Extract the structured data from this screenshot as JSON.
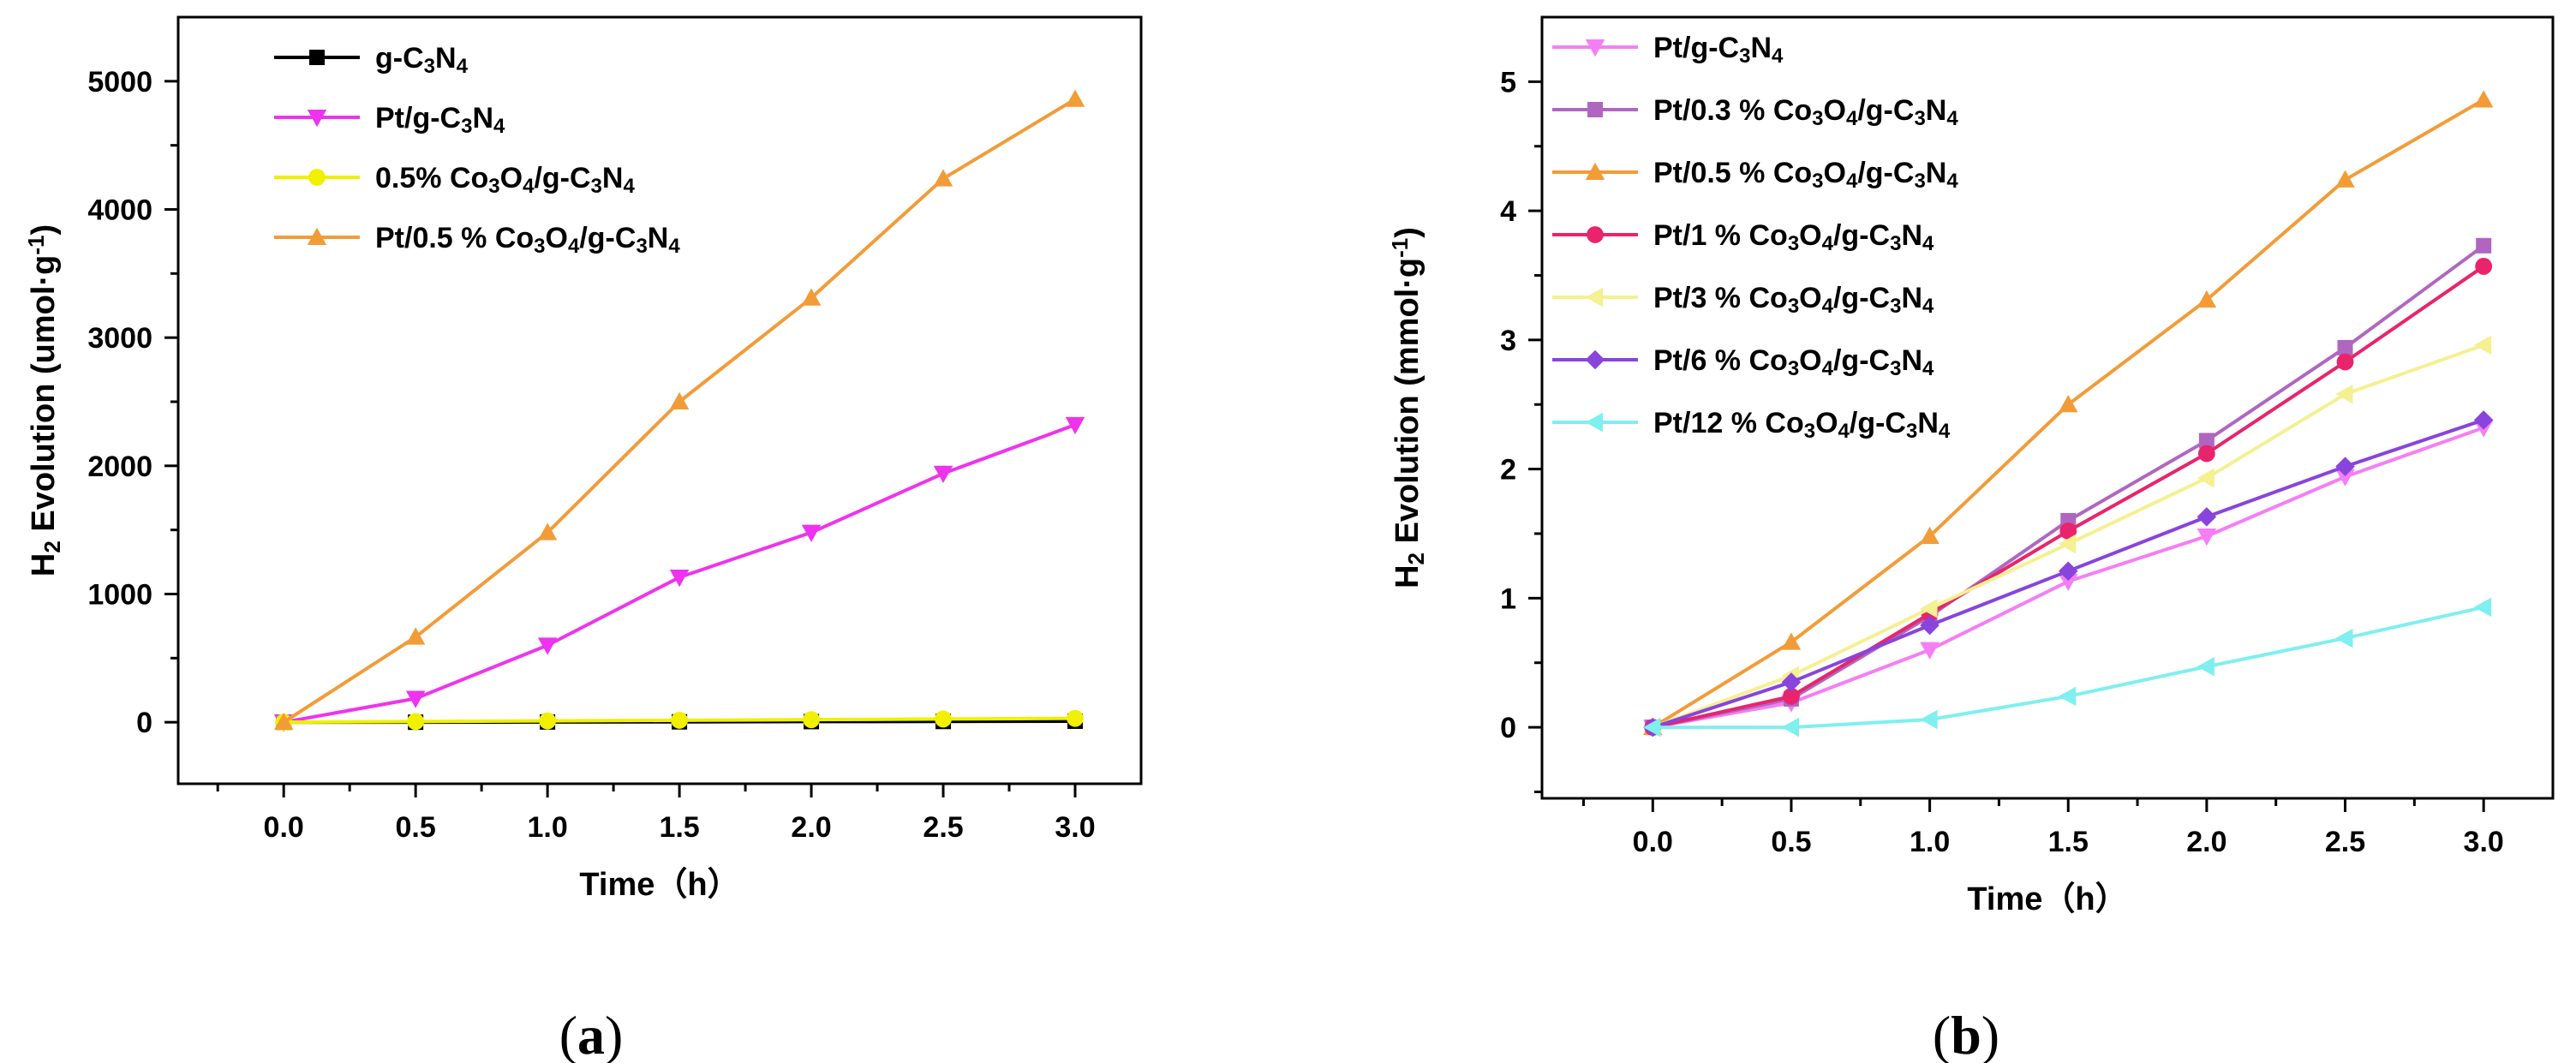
{
  "figure": {
    "panel_labels": [
      {
        "open": "(",
        "letter": "a",
        "close": ")"
      },
      {
        "open": "(",
        "letter": "b",
        "close": ")"
      }
    ]
  },
  "chart_data": [
    {
      "type": "line",
      "panel": "a",
      "title": "",
      "xlabel": "Time（h）",
      "ylabel": "H2 Evolution (umol·g-1)",
      "ylabel_parts": {
        "h": "H",
        "sub": "2",
        "mid": " Evolution (umol",
        "dot": "·",
        "g": "g",
        "sup": "-1",
        "end": ")"
      },
      "xlim": [
        -0.4,
        3.25
      ],
      "ylim": [
        -480,
        5500
      ],
      "xticks": [
        0.0,
        0.5,
        1.0,
        1.5,
        2.0,
        2.5,
        3.0
      ],
      "xtick_labels": [
        "0.0",
        "0.5",
        "1.0",
        "1.5",
        "2.0",
        "2.5",
        "3.0"
      ],
      "yticks": [
        0,
        1000,
        2000,
        3000,
        4000,
        5000
      ],
      "ytick_labels": [
        "0",
        "1000",
        "2000",
        "3000",
        "4000",
        "5000"
      ],
      "legend_position": "top-left",
      "x": [
        0.0,
        0.5,
        1.0,
        1.5,
        2.0,
        2.5,
        3.0
      ],
      "series": [
        {
          "name": "g-C3N4",
          "label_parts": [
            "g-C",
            "3",
            "N",
            "4",
            ""
          ],
          "color": "#000000",
          "marker": "square",
          "values": [
            0,
            0,
            2,
            3,
            5,
            6,
            8
          ]
        },
        {
          "name": "Pt/g-C3N4",
          "label_parts": [
            "Pt/g-C",
            "3",
            "N",
            "4",
            ""
          ],
          "color": "#ee33ee",
          "marker": "triangle-down",
          "values": [
            0,
            185,
            600,
            1130,
            1480,
            1940,
            2320
          ]
        },
        {
          "name": "0.5% Co3O4/g-C3N4",
          "label_parts": [
            "0.5% Co",
            "3",
            "O",
            "4",
            "/g-C",
            "3",
            "N",
            "4",
            ""
          ],
          "color": "#f0f000",
          "marker": "circle",
          "values": [
            0,
            5,
            10,
            15,
            20,
            25,
            30
          ]
        },
        {
          "name": "Pt/0.5 % Co3O4/g-C3N4",
          "label_parts": [
            "Pt/0.5 % Co",
            "3",
            "O",
            "4",
            "/g-C",
            "3",
            "N",
            "4",
            ""
          ],
          "color": "#f29c38",
          "marker": "triangle-up",
          "values": [
            0,
            665,
            1480,
            2500,
            3310,
            4240,
            4860
          ]
        }
      ]
    },
    {
      "type": "line",
      "panel": "b",
      "title": "",
      "xlabel": "Time（h）",
      "ylabel": "H2 Evolution (mmol·g-1)",
      "ylabel_parts": {
        "h": "H",
        "sub": "2",
        "mid": " Evolution (mmol",
        "dot": "·",
        "g": "g",
        "sup": "-1",
        "end": ")"
      },
      "xlim": [
        -0.4,
        3.25
      ],
      "ylim": [
        -0.55,
        5.5
      ],
      "xticks": [
        0.0,
        0.5,
        1.0,
        1.5,
        2.0,
        2.5,
        3.0
      ],
      "xtick_labels": [
        "0.0",
        "0.5",
        "1.0",
        "1.5",
        "2.0",
        "2.5",
        "3.0"
      ],
      "yticks": [
        0,
        1,
        2,
        3,
        4,
        5
      ],
      "ytick_labels": [
        "0",
        "1",
        "2",
        "3",
        "4",
        "5"
      ],
      "legend_position": "top-left",
      "x": [
        0.0,
        0.5,
        1.0,
        1.5,
        2.0,
        2.5,
        3.0
      ],
      "series": [
        {
          "name": "Pt/g-C3N4",
          "label_parts": [
            "Pt/g-C",
            "3",
            "N",
            "4",
            ""
          ],
          "color": "#f57ef5",
          "marker": "triangle-down",
          "values": [
            0,
            0.19,
            0.6,
            1.13,
            1.48,
            1.94,
            2.32
          ]
        },
        {
          "name": "Pt/0.3 % Co3O4/g-C3N4",
          "label_parts": [
            "Pt/0.3 % Co",
            "3",
            "O",
            "4",
            "/g-C",
            "3",
            "N",
            "4",
            ""
          ],
          "color": "#b066c0",
          "marker": "square",
          "values": [
            0,
            0.22,
            0.86,
            1.6,
            2.22,
            2.94,
            3.73
          ]
        },
        {
          "name": "Pt/0.5 % Co3O4/g-C3N4",
          "label_parts": [
            "Pt/0.5 % Co",
            "3",
            "O",
            "4",
            "/g-C",
            "3",
            "N",
            "4",
            ""
          ],
          "color": "#f29c38",
          "marker": "triangle-up",
          "values": [
            0,
            0.66,
            1.48,
            2.5,
            3.31,
            4.24,
            4.86
          ]
        },
        {
          "name": "Pt/1 % Co3O4/g-C3N4",
          "label_parts": [
            "Pt/1 % Co",
            "3",
            "O",
            "4",
            "/g-C",
            "3",
            "N",
            "4",
            ""
          ],
          "color": "#e8246c",
          "marker": "circle",
          "values": [
            0,
            0.24,
            0.88,
            1.52,
            2.12,
            2.83,
            3.57
          ]
        },
        {
          "name": "Pt/3 % Co3O4/g-C3N4",
          "label_parts": [
            "Pt/3 % Co",
            "3",
            "O",
            "4",
            "/g-C",
            "3",
            "N",
            "4",
            ""
          ],
          "color": "#f5f090",
          "marker": "triangle-left",
          "values": [
            0,
            0.4,
            0.92,
            1.42,
            1.93,
            2.58,
            2.96
          ]
        },
        {
          "name": "Pt/6 % Co3O4/g-C3N4",
          "label_parts": [
            "Pt/6 % Co",
            "3",
            "O",
            "4",
            "/g-C",
            "3",
            "N",
            "4",
            ""
          ],
          "color": "#8844dd",
          "marker": "diamond",
          "values": [
            0,
            0.35,
            0.79,
            1.21,
            1.63,
            2.02,
            2.38
          ]
        },
        {
          "name": "Pt/12 % Co3O4/g-C3N4",
          "label_parts": [
            "Pt/12 % Co",
            "3",
            "O",
            "4",
            "/g-C",
            "3",
            "N",
            "4",
            ""
          ],
          "color": "#7fefef",
          "marker": "triangle-left",
          "values": [
            0,
            0.0,
            0.06,
            0.24,
            0.47,
            0.69,
            0.93
          ]
        }
      ]
    }
  ]
}
